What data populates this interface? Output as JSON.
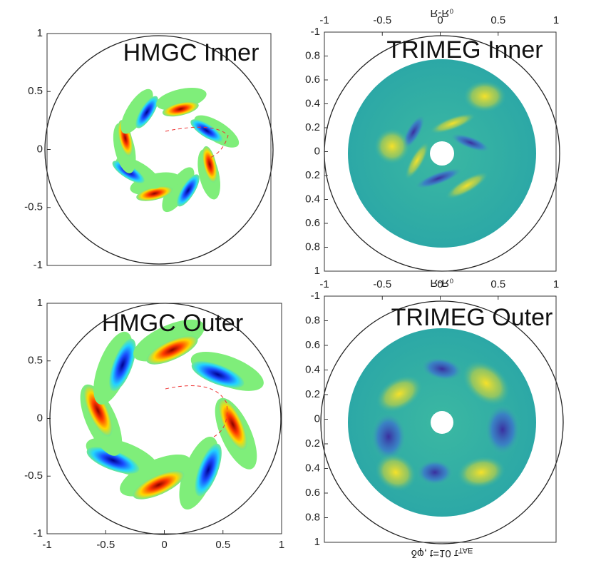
{
  "panels": [
    {
      "title": "HMGC Inner",
      "yticks": [
        -1,
        -0.5,
        0,
        0.5,
        1
      ]
    },
    {
      "title": "TRIMEG Inner",
      "axis_label": "R-R₀",
      "xticks": [
        -1,
        -0.5,
        0,
        0.5,
        1
      ],
      "yticks": [
        -1,
        {
          "value": -0.8,
          "label": "0.8"
        },
        {
          "value": -0.6,
          "label": "0.6"
        },
        {
          "value": -0.4,
          "label": "0.4"
        },
        {
          "value": -0.2,
          "label": "0.2"
        },
        0,
        0.2,
        0.4,
        0.6,
        0.8,
        1
      ]
    },
    {
      "title": "HMGC Outer",
      "xticks": [
        -1,
        -0.5,
        0,
        0.5,
        1
      ],
      "yticks": [
        -1,
        -0.5,
        0,
        0.5,
        1
      ]
    },
    {
      "title": "TRIMEG Outer",
      "axis_label": "R-R₀",
      "xticks": [
        -1,
        -0.5,
        0,
        0.5,
        1
      ],
      "yticks": [
        -1,
        {
          "value": -0.8,
          "label": "0.8"
        },
        {
          "value": -0.6,
          "label": "0.6"
        },
        {
          "value": -0.4,
          "label": "0.4"
        },
        {
          "value": -0.2,
          "label": "0.2"
        },
        0,
        0.2,
        0.4,
        0.6,
        0.8,
        1
      ],
      "caption": "δφ, t=10 τ",
      "caption_sub": "TAE"
    }
  ]
}
